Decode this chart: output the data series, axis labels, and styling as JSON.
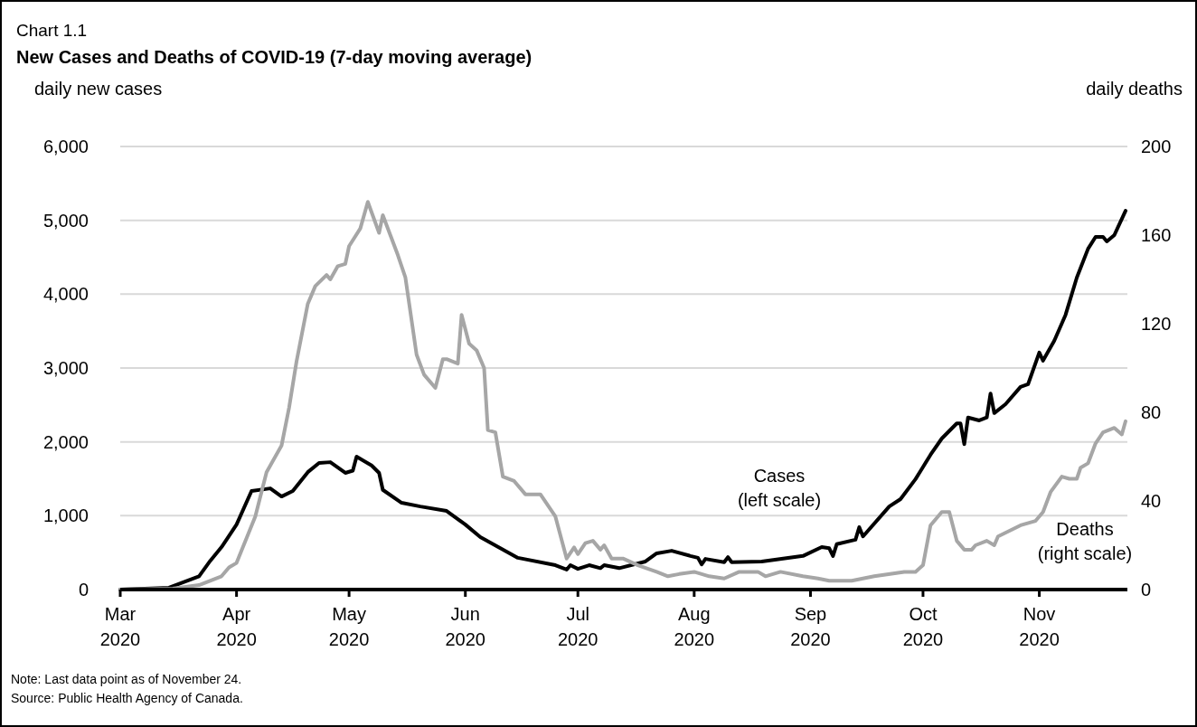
{
  "chart_data": {
    "type": "line",
    "subtitle": "Chart 1.1",
    "title": "New Cases and Deaths of COVID-19 (7-day moving average)",
    "ylabel": "daily new cases",
    "y2label": "daily deaths",
    "xlim": [
      "2020-03-01",
      "2020-11-24"
    ],
    "xticks": [
      {
        "value": "2020-03-01",
        "label": "Mar\n2020"
      },
      {
        "value": "2020-04-01",
        "label": "Apr\n2020"
      },
      {
        "value": "2020-05-01",
        "label": "May\n2020"
      },
      {
        "value": "2020-06-01",
        "label": "Jun\n2020"
      },
      {
        "value": "2020-07-01",
        "label": "Jul\n2020"
      },
      {
        "value": "2020-08-01",
        "label": "Aug\n2020"
      },
      {
        "value": "2020-09-01",
        "label": "Sep\n2020"
      },
      {
        "value": "2020-10-01",
        "label": "Oct\n2020"
      },
      {
        "value": "2020-11-01",
        "label": "Nov\n2020"
      }
    ],
    "ylim": [
      0,
      6000
    ],
    "yticks": [
      0,
      {
        "value": 1000,
        "label": "1,000"
      },
      {
        "value": 2000,
        "label": "2,000"
      },
      {
        "value": 3000,
        "label": "3,000"
      },
      {
        "value": 4000,
        "label": "4,000"
      },
      {
        "value": 5000,
        "label": "5,000"
      },
      {
        "value": 6000,
        "label": "6,000"
      }
    ],
    "y2lim": [
      0,
      200
    ],
    "y2ticks": [
      0,
      40,
      80,
      120,
      160,
      200
    ],
    "grid": "y",
    "line_style": "solid",
    "series": [
      {
        "name": "Cases\n(left scale)",
        "color": "#000000",
        "axis": "y",
        "x": [
          "2020-03-01",
          "2020-03-14",
          "2020-03-22",
          "2020-03-25",
          "2020-03-28",
          "2020-04-01",
          "2020-04-05",
          "2020-04-10",
          "2020-04-13",
          "2020-04-16",
          "2020-04-20",
          "2020-04-23",
          "2020-04-26",
          "2020-04-30",
          "2020-05-02",
          "2020-05-03",
          "2020-05-07",
          "2020-05-09",
          "2020-05-10",
          "2020-05-15",
          "2020-05-20",
          "2020-05-27",
          "2020-06-01",
          "2020-06-05",
          "2020-06-15",
          "2020-06-25",
          "2020-06-28",
          "2020-06-29",
          "2020-07-01",
          "2020-07-04",
          "2020-07-07",
          "2020-07-08",
          "2020-07-12",
          "2020-07-19",
          "2020-07-22",
          "2020-07-26",
          "2020-07-31",
          "2020-08-02",
          "2020-08-03",
          "2020-08-04",
          "2020-08-09",
          "2020-08-10",
          "2020-08-11",
          "2020-08-19",
          "2020-08-30",
          "2020-09-04",
          "2020-09-06",
          "2020-09-07",
          "2020-09-08",
          "2020-09-13",
          "2020-09-14",
          "2020-09-15",
          "2020-09-22",
          "2020-09-25",
          "2020-09-29",
          "2020-10-03",
          "2020-10-06",
          "2020-10-10",
          "2020-10-11",
          "2020-10-12",
          "2020-10-13",
          "2020-10-16",
          "2020-10-18",
          "2020-10-19",
          "2020-10-20",
          "2020-10-23",
          "2020-10-27",
          "2020-10-29",
          "2020-11-01",
          "2020-11-02",
          "2020-11-05",
          "2020-11-08",
          "2020-11-11",
          "2020-11-14",
          "2020-11-16",
          "2020-11-18",
          "2020-11-19",
          "2020-11-21",
          "2020-11-24"
        ],
        "values": [
          0,
          25,
          180,
          390,
          575,
          880,
          1335,
          1370,
          1260,
          1335,
          1590,
          1715,
          1725,
          1580,
          1610,
          1800,
          1680,
          1580,
          1350,
          1175,
          1125,
          1065,
          880,
          710,
          430,
          330,
          270,
          330,
          280,
          330,
          290,
          330,
          290,
          380,
          490,
          525,
          455,
          430,
          340,
          415,
          370,
          440,
          370,
          380,
          455,
          575,
          560,
          455,
          615,
          675,
          845,
          720,
          1125,
          1225,
          1495,
          1825,
          2045,
          2250,
          2250,
          1970,
          2330,
          2290,
          2330,
          2655,
          2390,
          2510,
          2745,
          2780,
          3210,
          3100,
          3370,
          3720,
          4225,
          4615,
          4775,
          4775,
          4715,
          4800,
          5130
        ]
      },
      {
        "name": "Deaths\n(right scale)",
        "color": "#a6a6a6",
        "axis": "y2",
        "x": [
          "2020-03-01",
          "2020-03-15",
          "2020-03-22",
          "2020-03-28",
          "2020-03-30",
          "2020-04-01",
          "2020-04-06",
          "2020-04-09",
          "2020-04-13",
          "2020-04-15",
          "2020-04-17",
          "2020-04-20",
          "2020-04-22",
          "2020-04-25",
          "2020-04-26",
          "2020-04-28",
          "2020-04-30",
          "2020-05-01",
          "2020-05-04",
          "2020-05-06",
          "2020-05-09",
          "2020-05-10",
          "2020-05-12",
          "2020-05-14",
          "2020-05-16",
          "2020-05-19",
          "2020-05-21",
          "2020-05-24",
          "2020-05-26",
          "2020-05-27",
          "2020-05-30",
          "2020-05-31",
          "2020-06-02",
          "2020-06-04",
          "2020-06-06",
          "2020-06-07",
          "2020-06-09",
          "2020-06-11",
          "2020-06-14",
          "2020-06-17",
          "2020-06-21",
          "2020-06-25",
          "2020-06-28",
          "2020-06-30",
          "2020-07-01",
          "2020-07-03",
          "2020-07-05",
          "2020-07-07",
          "2020-07-08",
          "2020-07-10",
          "2020-07-13",
          "2020-07-17",
          "2020-07-22",
          "2020-07-25",
          "2020-07-28",
          "2020-08-01",
          "2020-08-05",
          "2020-08-09",
          "2020-08-13",
          "2020-08-18",
          "2020-08-20",
          "2020-08-24",
          "2020-08-30",
          "2020-09-03",
          "2020-09-06",
          "2020-09-12",
          "2020-09-18",
          "2020-09-26",
          "2020-09-29",
          "2020-10-01",
          "2020-10-03",
          "2020-10-06",
          "2020-10-08",
          "2020-10-10",
          "2020-10-12",
          "2020-10-14",
          "2020-10-15",
          "2020-10-18",
          "2020-10-20",
          "2020-10-21",
          "2020-10-27",
          "2020-10-31",
          "2020-11-02",
          "2020-11-04",
          "2020-11-07",
          "2020-11-09",
          "2020-11-11",
          "2020-11-12",
          "2020-11-14",
          "2020-11-16",
          "2020-11-18",
          "2020-11-21",
          "2020-11-23",
          "2020-11-24"
        ],
        "values": [
          0,
          0.4,
          2,
          6,
          10,
          12,
          33,
          53,
          65,
          82,
          103,
          129,
          137,
          142,
          140,
          146,
          147,
          155,
          163,
          175,
          161,
          169,
          160,
          151,
          141,
          106,
          97,
          91,
          104,
          104,
          102,
          124,
          111,
          108,
          100,
          72,
          71,
          51,
          49,
          43,
          43,
          33,
          14,
          19,
          16,
          21,
          22,
          18,
          20,
          14,
          14,
          11,
          8,
          6,
          7,
          8,
          6,
          5,
          8,
          8,
          6,
          8,
          6,
          5,
          4,
          4,
          6,
          8,
          8,
          11,
          29,
          35,
          35,
          22,
          18,
          18,
          20,
          22,
          20,
          24,
          29,
          31,
          35,
          44,
          51,
          50,
          50,
          55,
          57,
          66,
          71,
          73,
          70,
          76
        ]
      }
    ],
    "annotations": [
      "Note: Last data point as of November 24.",
      "Source: Public Health Agency of Canada."
    ]
  }
}
